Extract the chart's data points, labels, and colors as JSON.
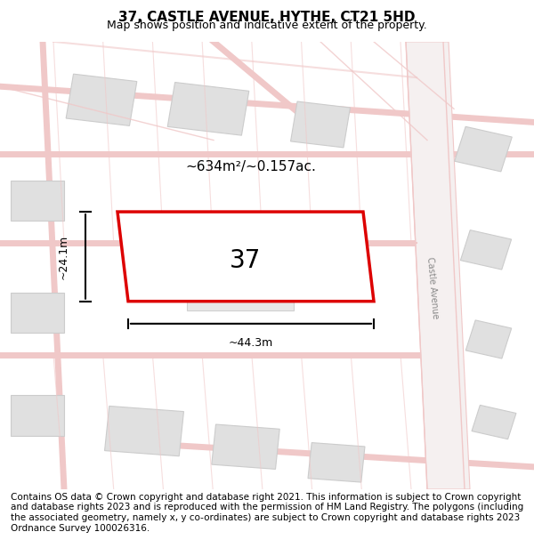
{
  "title": "37, CASTLE AVENUE, HYTHE, CT21 5HD",
  "subtitle": "Map shows position and indicative extent of the property.",
  "footer": "Contains OS data © Crown copyright and database right 2021. This information is subject to Crown copyright and database rights 2023 and is reproduced with the permission of HM Land Registry. The polygons (including the associated geometry, namely x, y co-ordinates) are subject to Crown copyright and database rights 2023 Ordnance Survey 100026316.",
  "area_label": "~634m²/~0.157ac.",
  "width_label": "~44.3m",
  "height_label": "~24.1m",
  "number_label": "37",
  "bg_color": "#ffffff",
  "map_bg": "#f5f5f5",
  "road_color": "#f0c8c8",
  "building_color": "#e0e0e0",
  "building_edge_color": "#cccccc",
  "plot_outline_color": "#dd0000",
  "dim_line_color": "#000000",
  "street_label": "Castle Avenue",
  "title_fontsize": 11,
  "subtitle_fontsize": 9,
  "footer_fontsize": 7.5
}
